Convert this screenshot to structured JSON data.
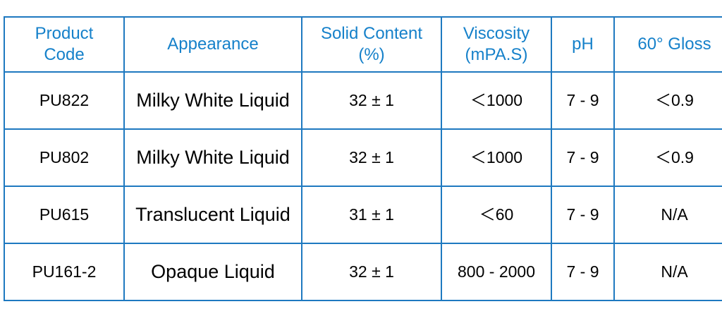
{
  "table": {
    "columns": [
      {
        "label": "Product\nCode"
      },
      {
        "label": "Appearance"
      },
      {
        "label": "Solid Content\n(%)"
      },
      {
        "label": "Viscosity\n(mPA.S)"
      },
      {
        "label": "pH"
      },
      {
        "label": "60° Gloss"
      }
    ],
    "rows": [
      {
        "cells": [
          "PU822",
          "Milky White Liquid",
          "32 ± 1",
          "＜1000",
          "7 - 9",
          "＜0.9"
        ]
      },
      {
        "cells": [
          "PU802",
          "Milky White Liquid",
          "32 ± 1",
          "＜1000",
          "7 - 9",
          "＜0.9"
        ]
      },
      {
        "cells": [
          "PU615",
          "Translucent Liquid",
          "31 ± 1",
          "＜60",
          "7 - 9",
          "N/A"
        ]
      },
      {
        "cells": [
          "PU161-2",
          "Opaque Liquid",
          "32 ± 1",
          "800 - 2000",
          "7 - 9",
          "N/A"
        ]
      }
    ],
    "colors": {
      "border": "#1e79c0",
      "header_text": "#1681ca",
      "body_text": "#000000"
    }
  },
  "chart_data": {
    "type": "table",
    "title": "",
    "columns": [
      "Product Code",
      "Appearance",
      "Solid Content (%)",
      "Viscosity (mPA.S)",
      "pH",
      "60° Gloss"
    ],
    "rows": [
      [
        "PU822",
        "Milky White Liquid",
        "32 ± 1",
        "＜1000",
        "7 - 9",
        "＜0.9"
      ],
      [
        "PU802",
        "Milky White Liquid",
        "32 ± 1",
        "＜1000",
        "7 - 9",
        "＜0.9"
      ],
      [
        "PU615",
        "Translucent Liquid",
        "31 ± 1",
        "＜60",
        "7 - 9",
        "N/A"
      ],
      [
        "PU161-2",
        "Opaque Liquid",
        "32 ± 1",
        "800 - 2000",
        "7 - 9",
        "N/A"
      ]
    ]
  }
}
